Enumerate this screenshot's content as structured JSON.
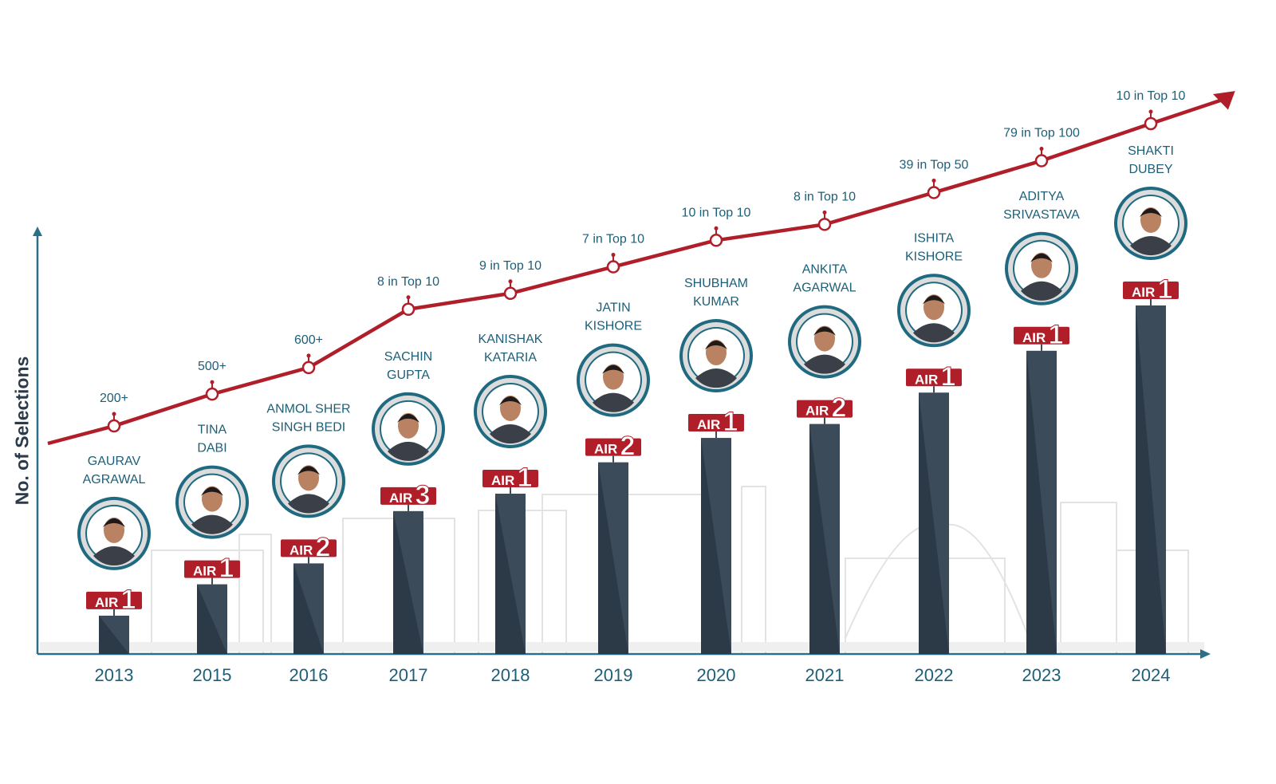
{
  "colors": {
    "bar": "#3b4b5a",
    "bar_shade": "#2c3a47",
    "trend": "#b01e2a",
    "badge": "#b01e2a",
    "text": "#1d5f78",
    "axis": "#2a7088",
    "ring": "#1f6a80",
    "ring_inner": "#dcdcdc"
  },
  "chart_data": {
    "type": "bar",
    "ylabel": "No. of Selections",
    "xlabel": "",
    "categories": [
      "2013",
      "2015",
      "2016",
      "2017",
      "2018",
      "2019",
      "2020",
      "2021",
      "2022",
      "2023",
      "2024"
    ],
    "bar_level_relative": [
      11,
      20,
      26,
      41,
      46,
      55,
      62,
      66,
      75,
      87,
      100
    ],
    "trend_level_relative": [
      43,
      49,
      54,
      65,
      68,
      73,
      78,
      81,
      87,
      93,
      100
    ],
    "trend_labels": [
      "200+",
      "500+",
      "600+",
      "8 in Top 10",
      "9 in Top 10",
      "7 in Top 10",
      "10 in Top 10",
      "8 in Top 10",
      "39 in Top 50",
      "79 in Top 100",
      "10 in Top 10"
    ],
    "toppers": [
      {
        "name": [
          "GAURAV",
          "AGRAWAL"
        ],
        "air": "1"
      },
      {
        "name": [
          "TINA",
          "DABI"
        ],
        "air": "1"
      },
      {
        "name": [
          "ANMOL SHER",
          "SINGH BEDI"
        ],
        "air": "2"
      },
      {
        "name": [
          "SACHIN",
          "GUPTA"
        ],
        "air": "3"
      },
      {
        "name": [
          "KANISHAK",
          "KATARIA"
        ],
        "air": "1"
      },
      {
        "name": [
          "JATIN",
          "KISHORE"
        ],
        "air": "2"
      },
      {
        "name": [
          "SHUBHAM",
          "KUMAR"
        ],
        "air": "1"
      },
      {
        "name": [
          "ANKITA",
          "AGARWAL"
        ],
        "air": "2"
      },
      {
        "name": [
          "ISHITA",
          "KISHORE"
        ],
        "air": "1"
      },
      {
        "name": [
          "ADITYA",
          "SRIVASTAVA"
        ],
        "air": "1"
      },
      {
        "name": [
          "SHAKTI",
          "DUBEY"
        ],
        "air": "1"
      }
    ],
    "air_prefix": "AIR",
    "grid": false,
    "legend": "none"
  }
}
